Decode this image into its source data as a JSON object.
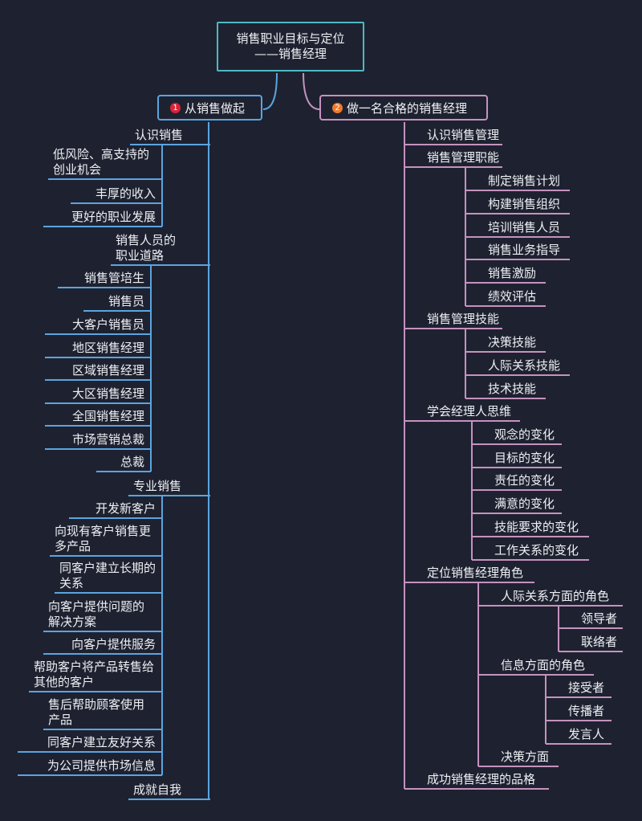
{
  "root": {
    "line1": "销售职业目标与定位",
    "line2": "——销售经理"
  },
  "colors": {
    "background": "#1e2230",
    "root_border": "#4fb8c2",
    "left_branch": "#5ba4e0",
    "right_branch": "#c592be",
    "badge1": "#d9233a",
    "badge2": "#ef7a2c"
  },
  "left": {
    "badge": "1",
    "title": "从销售做起",
    "topics": [
      {
        "label": "认识销售",
        "children": [
          "低风险、高支持的创业机会",
          "丰厚的收入",
          "更好的职业发展"
        ]
      },
      {
        "label": "销售人员的职业道路",
        "children": [
          "销售管培生",
          "销售员",
          "大客户销售员",
          "地区销售经理",
          "区域销售经理",
          "大区销售经理",
          "全国销售经理",
          "市场营销总裁",
          "总裁"
        ]
      },
      {
        "label": "专业销售",
        "children": [
          "开发新客户",
          "向现有客户销售更多产品",
          "同客户建立长期的关系",
          "向客户提供问题的解决方案",
          "向客户提供服务",
          "帮助客户将产品转售给其他的客户",
          "售后帮助顾客使用产品",
          "同客户建立友好关系",
          "为公司提供市场信息"
        ]
      },
      {
        "label": "成就自我",
        "children": []
      }
    ]
  },
  "right": {
    "badge": "2",
    "title": "做一名合格的销售经理",
    "topics": [
      {
        "label": "认识销售管理",
        "children": []
      },
      {
        "label": "销售管理职能",
        "children": [
          "制定销售计划",
          "构建销售组织",
          "培训销售人员",
          "销售业务指导",
          "销售激励",
          "绩效评估"
        ]
      },
      {
        "label": "销售管理技能",
        "children": [
          "决策技能",
          "人际关系技能",
          "技术技能"
        ]
      },
      {
        "label": "学会经理人思维",
        "children": [
          "观念的变化",
          "目标的变化",
          "责任的变化",
          "满意的变化",
          "技能要求的变化",
          "工作关系的变化"
        ]
      },
      {
        "label": "定位销售经理角色",
        "children": [
          {
            "label": "人际关系方面的角色",
            "children": [
              "领导者",
              "联络者"
            ]
          },
          {
            "label": "信息方面的角色",
            "children": [
              "接受者",
              "传播者",
              "发言人"
            ]
          },
          {
            "label": "决策方面",
            "children": []
          }
        ]
      },
      {
        "label": "成功销售经理的品格",
        "children": []
      }
    ]
  }
}
